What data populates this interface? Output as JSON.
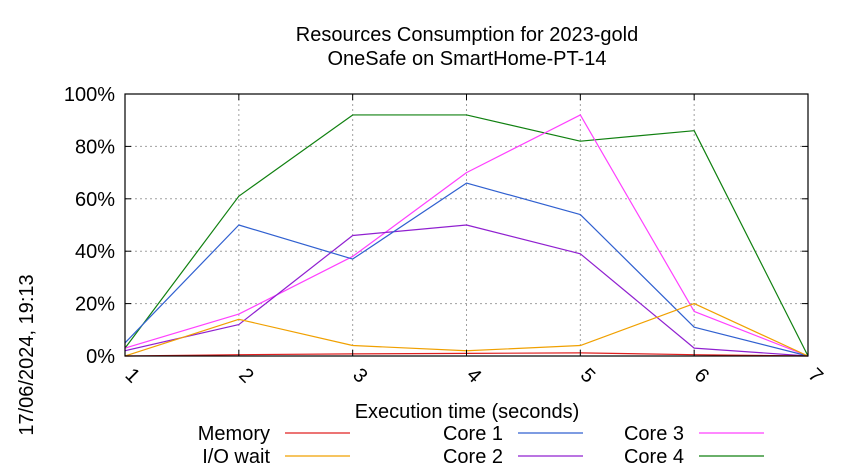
{
  "chart_data": {
    "type": "line",
    "title": "Resources Consumption for 2023-gold",
    "subtitle": "OneSafe on SmartHome-PT-14",
    "xlabel": "Execution time (seconds)",
    "ylabel": "",
    "side_label": "17/06/2024, 19:13",
    "x": [
      1,
      2,
      3,
      4,
      5,
      6,
      7
    ],
    "xlim": [
      1,
      7
    ],
    "ylim": [
      0,
      100
    ],
    "y_ticks": [
      "0%",
      "20%",
      "40%",
      "60%",
      "80%",
      "100%"
    ],
    "x_ticks": [
      "1",
      "2",
      "3",
      "4",
      "5",
      "6",
      "7"
    ],
    "grid": true,
    "legend_position": "bottom",
    "series": [
      {
        "name": "Memory",
        "color": "#e02020",
        "values": [
          0,
          0.5,
          0.8,
          1,
          1.2,
          0.5,
          0
        ]
      },
      {
        "name": "I/O wait",
        "color": "#f0a000",
        "values": [
          0,
          14,
          4,
          2,
          4,
          20,
          0
        ]
      },
      {
        "name": "Core 1",
        "color": "#3060d0",
        "values": [
          5,
          50,
          37,
          66,
          54,
          11,
          0
        ]
      },
      {
        "name": "Core 2",
        "color": "#9020d0",
        "values": [
          2,
          12,
          46,
          50,
          39,
          3,
          0
        ]
      },
      {
        "name": "Core 3",
        "color": "#ff40ff",
        "values": [
          3,
          16,
          38,
          70,
          92,
          17,
          0
        ]
      },
      {
        "name": "Core 4",
        "color": "#108010",
        "values": [
          3,
          61,
          92,
          92,
          82,
          86,
          0
        ]
      }
    ]
  }
}
